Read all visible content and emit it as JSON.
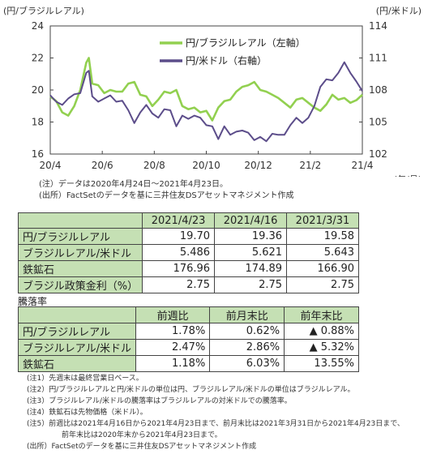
{
  "chart_data": {
    "type": "line",
    "left_axis_unit": "(円/ブラジルレアル)",
    "right_axis_unit": "(円/米ドル)",
    "x_unit": "(年/月)",
    "x_tick_labels": [
      "20/4",
      "20/6",
      "20/8",
      "20/10",
      "20/12",
      "21/2",
      "21/4"
    ],
    "left_ylim": [
      16,
      24
    ],
    "left_ticks": [
      16,
      18,
      20,
      22,
      24
    ],
    "right_ylim": [
      102,
      114
    ],
    "right_ticks": [
      102,
      105,
      108,
      111,
      114
    ],
    "series": [
      {
        "name": "円/ブラジルレアル（左軸）",
        "axis": "left",
        "color": "#92d050",
        "points": [
          [
            "2020-04-24",
            19.6
          ],
          [
            "2020-05-01",
            19.3
          ],
          [
            "2020-05-08",
            18.6
          ],
          [
            "2020-05-15",
            18.4
          ],
          [
            "2020-05-22",
            19.0
          ],
          [
            "2020-05-29",
            20.0
          ],
          [
            "2020-06-05",
            21.7
          ],
          [
            "2020-06-08",
            22.0
          ],
          [
            "2020-06-12",
            20.4
          ],
          [
            "2020-06-19",
            20.3
          ],
          [
            "2020-06-26",
            19.8
          ],
          [
            "2020-07-03",
            20.0
          ],
          [
            "2020-07-10",
            19.9
          ],
          [
            "2020-07-17",
            19.9
          ],
          [
            "2020-07-24",
            20.4
          ],
          [
            "2020-07-31",
            20.5
          ],
          [
            "2020-08-07",
            19.7
          ],
          [
            "2020-08-14",
            19.6
          ],
          [
            "2020-08-21",
            19.0
          ],
          [
            "2020-08-28",
            19.4
          ],
          [
            "2020-09-04",
            19.9
          ],
          [
            "2020-09-11",
            19.8
          ],
          [
            "2020-09-18",
            20.0
          ],
          [
            "2020-09-25",
            19.0
          ],
          [
            "2020-10-02",
            18.8
          ],
          [
            "2020-10-09",
            18.9
          ],
          [
            "2020-10-16",
            18.6
          ],
          [
            "2020-10-23",
            18.7
          ],
          [
            "2020-10-30",
            18.1
          ],
          [
            "2020-11-06",
            18.9
          ],
          [
            "2020-11-13",
            19.3
          ],
          [
            "2020-11-20",
            19.4
          ],
          [
            "2020-11-27",
            19.9
          ],
          [
            "2020-12-04",
            20.2
          ],
          [
            "2020-12-11",
            20.3
          ],
          [
            "2020-12-18",
            20.5
          ],
          [
            "2020-12-25",
            20.0
          ],
          [
            "2021-01-01",
            19.9
          ],
          [
            "2021-01-08",
            19.7
          ],
          [
            "2021-01-15",
            19.5
          ],
          [
            "2021-01-22",
            19.2
          ],
          [
            "2021-01-29",
            18.9
          ],
          [
            "2021-02-05",
            19.4
          ],
          [
            "2021-02-12",
            19.5
          ],
          [
            "2021-02-19",
            19.2
          ],
          [
            "2021-02-26",
            18.9
          ],
          [
            "2021-03-05",
            18.7
          ],
          [
            "2021-03-12",
            19.1
          ],
          [
            "2021-03-19",
            19.7
          ],
          [
            "2021-03-26",
            19.4
          ],
          [
            "2021-04-02",
            19.5
          ],
          [
            "2021-04-09",
            19.2
          ],
          [
            "2021-04-16",
            19.36
          ],
          [
            "2021-04-23",
            19.7
          ]
        ]
      },
      {
        "name": "円/米ドル（右軸）",
        "axis": "right",
        "color": "#5c4d8a",
        "points": [
          [
            "2020-04-24",
            107.5
          ],
          [
            "2020-05-01",
            106.9
          ],
          [
            "2020-05-08",
            106.6
          ],
          [
            "2020-05-15",
            107.2
          ],
          [
            "2020-05-22",
            107.6
          ],
          [
            "2020-05-29",
            107.7
          ],
          [
            "2020-06-05",
            109.6
          ],
          [
            "2020-06-08",
            109.8
          ],
          [
            "2020-06-12",
            107.4
          ],
          [
            "2020-06-19",
            106.9
          ],
          [
            "2020-06-26",
            107.2
          ],
          [
            "2020-07-03",
            107.5
          ],
          [
            "2020-07-10",
            106.9
          ],
          [
            "2020-07-17",
            107.0
          ],
          [
            "2020-07-24",
            106.1
          ],
          [
            "2020-07-31",
            104.9
          ],
          [
            "2020-08-07",
            105.9
          ],
          [
            "2020-08-14",
            106.6
          ],
          [
            "2020-08-21",
            105.8
          ],
          [
            "2020-08-28",
            105.4
          ],
          [
            "2020-09-04",
            106.2
          ],
          [
            "2020-09-11",
            106.1
          ],
          [
            "2020-09-18",
            104.6
          ],
          [
            "2020-09-25",
            105.6
          ],
          [
            "2020-10-02",
            105.3
          ],
          [
            "2020-10-09",
            105.6
          ],
          [
            "2020-10-16",
            105.4
          ],
          [
            "2020-10-23",
            104.7
          ],
          [
            "2020-10-30",
            104.6
          ],
          [
            "2020-11-06",
            103.4
          ],
          [
            "2020-11-13",
            104.6
          ],
          [
            "2020-11-20",
            103.8
          ],
          [
            "2020-11-27",
            104.1
          ],
          [
            "2020-12-04",
            104.2
          ],
          [
            "2020-12-11",
            104.0
          ],
          [
            "2020-12-18",
            103.3
          ],
          [
            "2020-12-25",
            103.6
          ],
          [
            "2021-01-01",
            103.2
          ],
          [
            "2021-01-08",
            103.9
          ],
          [
            "2021-01-15",
            103.8
          ],
          [
            "2021-01-22",
            103.8
          ],
          [
            "2021-01-29",
            104.7
          ],
          [
            "2021-02-05",
            105.4
          ],
          [
            "2021-02-12",
            104.9
          ],
          [
            "2021-02-19",
            105.4
          ],
          [
            "2021-02-26",
            106.5
          ],
          [
            "2021-03-05",
            108.3
          ],
          [
            "2021-03-12",
            109.0
          ],
          [
            "2021-03-19",
            108.9
          ],
          [
            "2021-03-26",
            109.6
          ],
          [
            "2021-04-02",
            110.6
          ],
          [
            "2021-04-09",
            109.6
          ],
          [
            "2021-04-16",
            108.8
          ],
          [
            "2021-04-23",
            107.9
          ]
        ]
      }
    ]
  },
  "chart_notes": [
    "(注）データは2020年4月24日～2021年4月23日。",
    "(出所）FactSetのデータを基に三井住友DSアセットマネジメント作成"
  ],
  "table1": {
    "headers": [
      "",
      "2021/4/23",
      "2021/4/16",
      "2021/3/31"
    ],
    "rows": [
      {
        "label": "円/ブラジルレアル",
        "values": [
          "19.70",
          "19.36",
          "19.58"
        ]
      },
      {
        "label": "ブラジルレアル/米ドル",
        "values": [
          "5.486",
          "5.621",
          "5.643"
        ]
      },
      {
        "label": "鉄鉱石",
        "values": [
          "176.96",
          "174.89",
          "166.90"
        ]
      },
      {
        "label": "ブラジル政策金利（%）",
        "values": [
          "2.75",
          "2.75",
          "2.75"
        ]
      }
    ]
  },
  "table2_title": "騰落率",
  "table2": {
    "headers": [
      "",
      "前週比",
      "前月末比",
      "前年末比"
    ],
    "rows": [
      {
        "label": "円/ブラジルレアル",
        "values": [
          "1.78%",
          "0.62%",
          "▲ 0.88%"
        ]
      },
      {
        "label": "ブラジルレアル/米ドル",
        "values": [
          "2.47%",
          "2.86%",
          "▲ 5.32%"
        ]
      },
      {
        "label": "鉄鉱石",
        "values": [
          "1.18%",
          "6.03%",
          "13.55%"
        ]
      }
    ]
  },
  "footnotes": [
    "(注1）先週末は最終営業日ベース。",
    "(注2）円/ブラジルレアルと円/米ドルの単位は円、ブラジルレアル/米ドルの単位はブラジルレアル。",
    "(注3）ブラジルレアル/米ドルの騰落率はブラジルレアルの対米ドルでの騰落率。",
    "(注4）鉄鉱石は先物価格（米ドル）。",
    "(注5）前週比は2021年4月16日から2021年4月23日まで、前月末比は2021年3月31日から2021年4月23日まで、",
    "前年末比は2020年末から2021年4月23日まで。",
    "(出所）FactSetのデータを基に三井住友DSアセットマネジメント作成"
  ]
}
